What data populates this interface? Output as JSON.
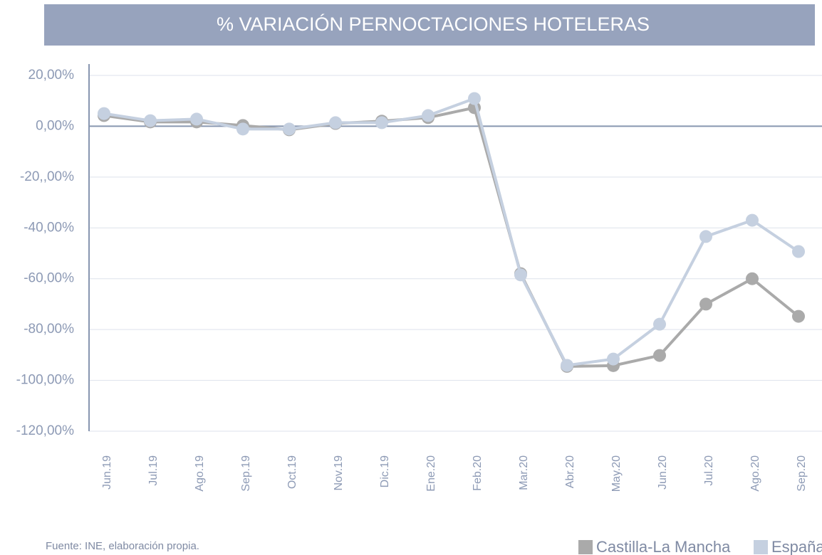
{
  "chart_data": {
    "type": "line",
    "title": "% VARIACIÓN PERNOCTACIONES HOTELERAS",
    "source": "Fuente: INE, elaboración propia.",
    "categories": [
      "Jun.19",
      "Jul.19",
      "Ago.19",
      "Sep.19",
      "Oct.19",
      "Nov.19",
      "Dic.19",
      "Ene.20",
      "Feb.20",
      "Mar.20",
      "Abr.20",
      "May.20",
      "Jun.20",
      "Jul.20",
      "Ago.20",
      "Sep.20"
    ],
    "series": [
      {
        "name": "Castilla-La Mancha",
        "color": "#aaaaaa",
        "values": [
          4.2,
          1.7,
          1.7,
          0.3,
          -1.4,
          1.1,
          2,
          3.4,
          7.3,
          -58,
          -94.5,
          -94.2,
          -90.2,
          -70,
          -60,
          -74.8
        ]
      },
      {
        "name": "España",
        "color": "#c5d0e0",
        "values": [
          5,
          2.2,
          2.8,
          -1.1,
          -1.1,
          1.4,
          1.4,
          4.2,
          10.9,
          -58.5,
          -94.1,
          -91.6,
          -77.9,
          -43.4,
          -37,
          -49.3
        ]
      }
    ],
    "ylim": [
      -120,
      20
    ],
    "yticks": [
      {
        "value": 20,
        "label": "20,00%"
      },
      {
        "value": 0,
        "label": "0,00%"
      },
      {
        "value": -20,
        "label": "-20,,00%"
      },
      {
        "value": -40,
        "label": "-40,00%"
      },
      {
        "value": -60,
        "label": "-60,00%"
      },
      {
        "value": -80,
        "label": "-80,00%"
      },
      {
        "value": -100,
        "label": "-100,00%"
      },
      {
        "value": -120,
        "label": "-120,00%"
      }
    ],
    "grid": true
  }
}
